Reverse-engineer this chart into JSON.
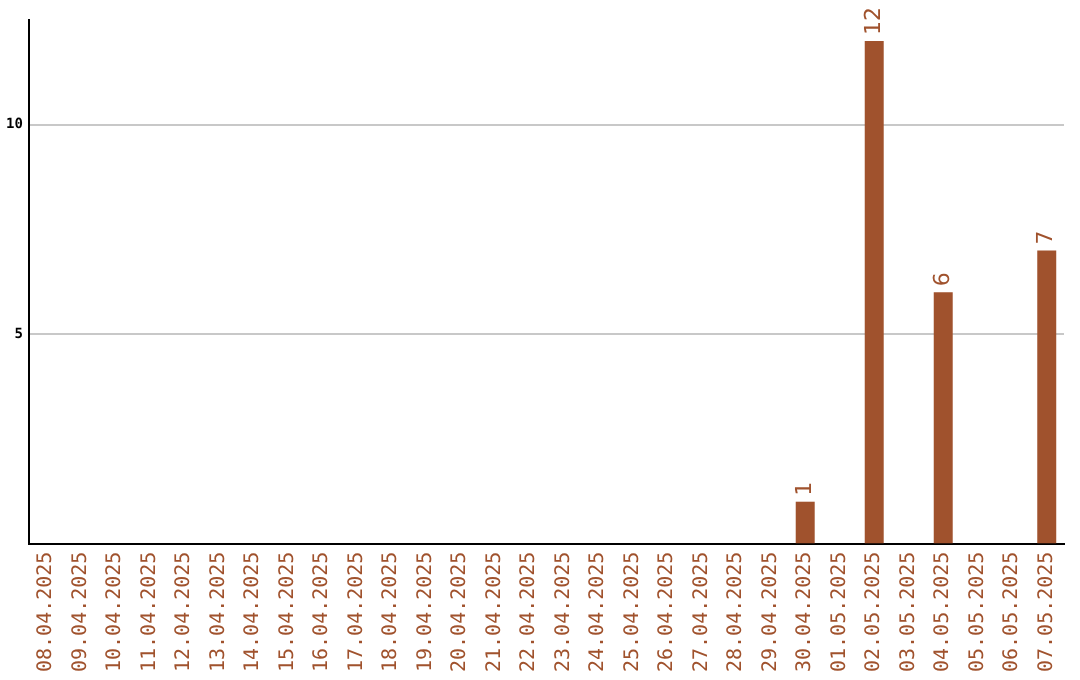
{
  "chart_data": {
    "type": "bar",
    "categories": [
      "08.04.2025",
      "09.04.2025",
      "10.04.2025",
      "11.04.2025",
      "12.04.2025",
      "13.04.2025",
      "14.04.2025",
      "15.04.2025",
      "16.04.2025",
      "17.04.2025",
      "18.04.2025",
      "19.04.2025",
      "20.04.2025",
      "21.04.2025",
      "22.04.2025",
      "23.04.2025",
      "24.04.2025",
      "25.04.2025",
      "26.04.2025",
      "27.04.2025",
      "28.04.2025",
      "29.04.2025",
      "30.04.2025",
      "01.05.2025",
      "02.05.2025",
      "03.05.2025",
      "04.05.2025",
      "05.05.2025",
      "06.05.2025",
      "07.05.2025"
    ],
    "values": [
      0,
      0,
      0,
      0,
      0,
      0,
      0,
      0,
      0,
      0,
      0,
      0,
      0,
      0,
      0,
      0,
      0,
      0,
      0,
      0,
      0,
      0,
      1,
      0,
      12,
      0,
      6,
      0,
      0,
      7
    ],
    "value_labels": [
      null,
      null,
      null,
      null,
      null,
      null,
      null,
      null,
      null,
      null,
      null,
      null,
      null,
      null,
      null,
      null,
      null,
      null,
      null,
      null,
      null,
      null,
      "1",
      null,
      "12",
      null,
      "6",
      null,
      null,
      "7"
    ],
    "color": "#a0522d",
    "ylim": [
      0,
      12.5
    ],
    "yticks": [
      5,
      10
    ],
    "grid": "y",
    "legend": false
  }
}
